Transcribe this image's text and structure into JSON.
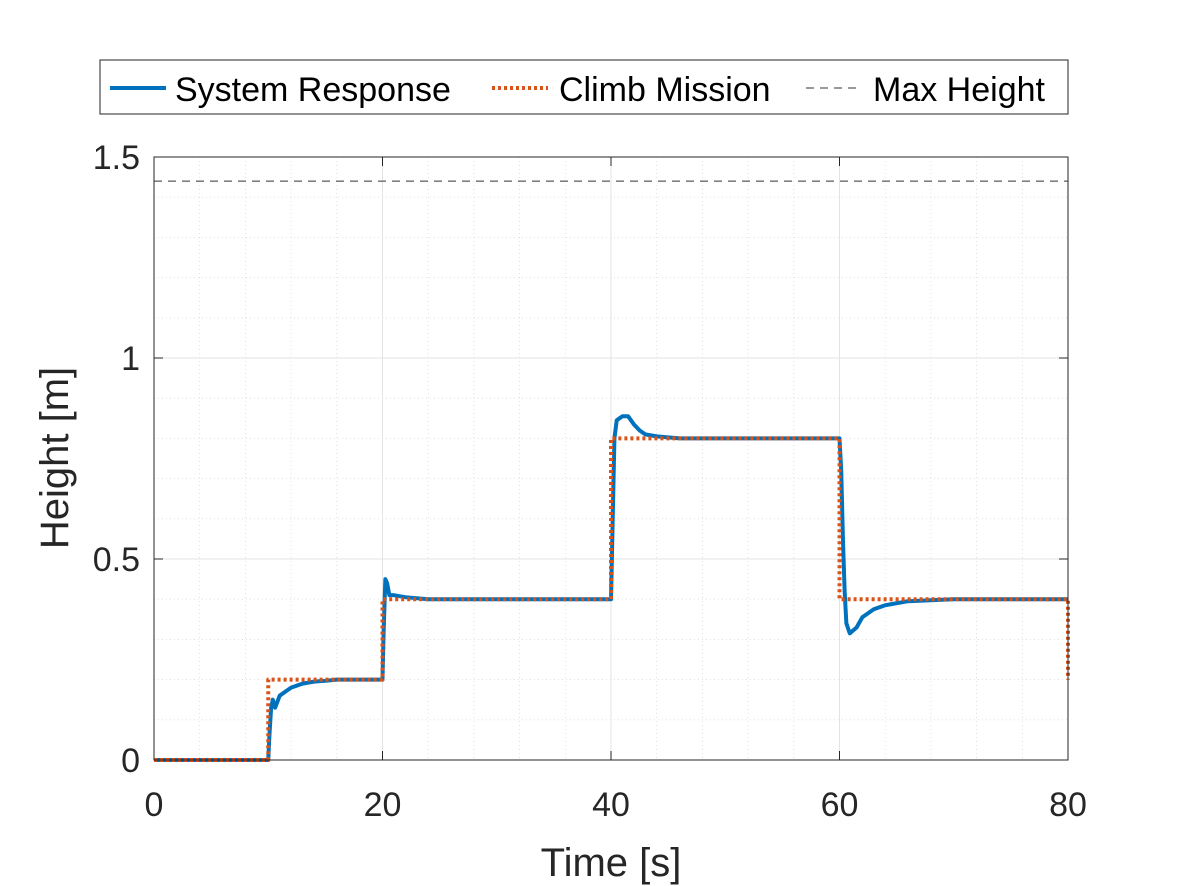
{
  "chart_data": {
    "type": "line",
    "xlabel": "Time [s]",
    "ylabel": "Height [m]",
    "xlim": [
      0,
      80
    ],
    "ylim": [
      0,
      1.5
    ],
    "xticks": [
      "0",
      "20",
      "40",
      "60",
      "80"
    ],
    "yticks": [
      "0",
      "0.5",
      "1",
      "1.5"
    ],
    "grid": true,
    "minor_grid": true,
    "legend_position": "top-outside",
    "series": [
      {
        "name": "System Response",
        "color": "#0072BD",
        "style": "solid",
        "x": [
          0,
          10,
          10.1,
          10.25,
          10.4,
          10.6,
          11,
          11.5,
          12,
          13,
          14,
          15,
          16,
          18,
          20,
          20.1,
          20.25,
          20.4,
          20.6,
          21,
          22,
          24,
          30,
          35,
          40,
          40.15,
          40.3,
          40.5,
          41,
          41.5,
          42,
          42.5,
          43,
          44,
          46,
          50,
          55,
          60,
          60.15,
          60.3,
          60.45,
          60.6,
          60.9,
          61.5,
          62,
          63,
          64,
          66,
          70,
          75,
          80
        ],
        "y": [
          0,
          0,
          0.06,
          0.13,
          0.15,
          0.13,
          0.16,
          0.17,
          0.18,
          0.19,
          0.195,
          0.197,
          0.2,
          0.2,
          0.2,
          0.32,
          0.45,
          0.44,
          0.41,
          0.41,
          0.405,
          0.4,
          0.4,
          0.4,
          0.4,
          0.6,
          0.8,
          0.845,
          0.855,
          0.855,
          0.835,
          0.82,
          0.81,
          0.805,
          0.8,
          0.8,
          0.8,
          0.8,
          0.72,
          0.55,
          0.42,
          0.34,
          0.315,
          0.33,
          0.355,
          0.375,
          0.385,
          0.395,
          0.4,
          0.4,
          0.4
        ]
      },
      {
        "name": "Climb Mission",
        "color": "#D95319",
        "style": "dotted",
        "x": [
          0,
          10,
          10,
          20,
          20,
          40,
          40,
          60,
          60,
          80,
          80
        ],
        "y": [
          0,
          0,
          0.2,
          0.2,
          0.4,
          0.4,
          0.8,
          0.8,
          0.4,
          0.4,
          0.2
        ]
      },
      {
        "name": "Max Height",
        "color": "#333333",
        "style": "dashed",
        "x": [
          0,
          80
        ],
        "y": [
          1.44,
          1.44
        ]
      }
    ]
  }
}
